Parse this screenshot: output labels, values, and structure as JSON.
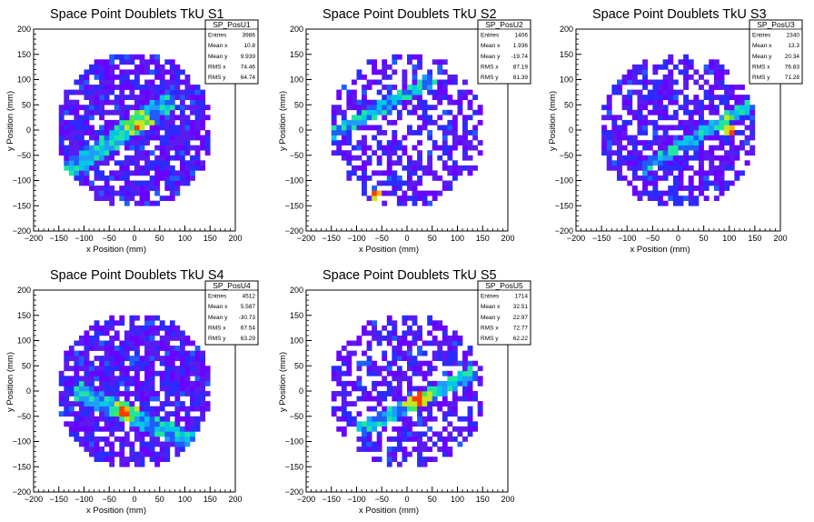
{
  "chart_data": [
    {
      "type": "heatmap",
      "title": "Space Point Doublets TkU S1",
      "xlabel": "x Position (mm)",
      "ylabel": "y Position (mm)",
      "xlim": [
        -200,
        200
      ],
      "ylim": [
        -200,
        200
      ],
      "xticks": [
        "−200",
        "−150",
        "−100",
        "−50",
        "0",
        "50",
        "100",
        "150",
        "200"
      ],
      "yticks": [
        "−200",
        "−150",
        "−100",
        "−50",
        "0",
        "50",
        "100",
        "150",
        "200"
      ],
      "stats": {
        "name": "SP_PosU1",
        "rows": [
          {
            "label": "Entries",
            "value": "3986"
          },
          {
            "label": "Mean x",
            "value": "10.8"
          },
          {
            "label": "Mean y",
            "value": "9.939"
          },
          {
            "label": "RMS x",
            "value": "74.46"
          },
          {
            "label": "RMS y",
            "value": "64.74"
          }
        ]
      },
      "pattern": {
        "fill": 0.82,
        "band_dir": [
          1,
          0.7
        ],
        "band_offset": [
          -30,
          -10
        ],
        "band_halfwidth": 18,
        "hotspot": [
          10,
          10
        ],
        "seed": 11
      }
    },
    {
      "type": "heatmap",
      "title": "Space Point Doublets TkU S2",
      "xlabel": "x Position (mm)",
      "ylabel": "y Position (mm)",
      "xlim": [
        -200,
        200
      ],
      "ylim": [
        -200,
        200
      ],
      "xticks": [
        "−200",
        "−150",
        "−100",
        "−50",
        "0",
        "50",
        "100",
        "150",
        "200"
      ],
      "yticks": [
        "−200",
        "−150",
        "−100",
        "−50",
        "0",
        "50",
        "100",
        "150",
        "200"
      ],
      "stats": {
        "name": "SP_PosU2",
        "rows": [
          {
            "label": "Entries",
            "value": "1406"
          },
          {
            "label": "Mean x",
            "value": "1.936"
          },
          {
            "label": "Mean y",
            "value": "-19.74"
          },
          {
            "label": "RMS x",
            "value": "87.19"
          },
          {
            "label": "RMS y",
            "value": "81.39"
          }
        ]
      },
      "pattern": {
        "fill": 0.55,
        "band_dir": [
          1,
          0.55
        ],
        "band_offset": [
          -60,
          40
        ],
        "band_halfwidth": 12,
        "hotspot": [
          -60,
          -130
        ],
        "seed": 23
      }
    },
    {
      "type": "heatmap",
      "title": "Space Point Doublets TkU S3",
      "xlabel": "x Position (mm)",
      "ylabel": "y Position (mm)",
      "xlim": [
        -200,
        200
      ],
      "ylim": [
        -200,
        200
      ],
      "xticks": [
        "−200",
        "−150",
        "−100",
        "−50",
        "0",
        "50",
        "100",
        "150",
        "200"
      ],
      "yticks": [
        "−200",
        "−150",
        "−100",
        "−50",
        "0",
        "50",
        "100",
        "150",
        "200"
      ],
      "stats": {
        "name": "SP_PosU3",
        "rows": [
          {
            "label": "Entries",
            "value": "2340"
          },
          {
            "label": "Mean x",
            "value": "13.3"
          },
          {
            "label": "Mean y",
            "value": "20.34"
          },
          {
            "label": "RMS x",
            "value": "76.83"
          },
          {
            "label": "RMS y",
            "value": "71.28"
          }
        ]
      },
      "pattern": {
        "fill": 0.68,
        "band_dir": [
          1,
          0.6
        ],
        "band_offset": [
          40,
          -10
        ],
        "band_halfwidth": 12,
        "hotspot": [
          100,
          0
        ],
        "seed": 37
      }
    },
    {
      "type": "heatmap",
      "title": "Space Point Doublets TkU S4",
      "xlabel": "x Position (mm)",
      "ylabel": "y Position (mm)",
      "xlim": [
        -200,
        200
      ],
      "ylim": [
        -200,
        200
      ],
      "xticks": [
        "−200",
        "−150",
        "−100",
        "−50",
        "0",
        "50",
        "100",
        "150",
        "200"
      ],
      "yticks": [
        "−200",
        "−150",
        "−100",
        "−50",
        "0",
        "50",
        "100",
        "150",
        "200"
      ],
      "stats": {
        "name": "SP_PosU4",
        "rows": [
          {
            "label": "Entries",
            "value": "4512"
          },
          {
            "label": "Mean x",
            "value": "5.587"
          },
          {
            "label": "Mean y",
            "value": "-30.73"
          },
          {
            "label": "RMS x",
            "value": "67.54"
          },
          {
            "label": "RMS y",
            "value": "63.29"
          }
        ]
      },
      "pattern": {
        "fill": 0.85,
        "band_dir": [
          1,
          -0.45
        ],
        "band_offset": [
          0,
          -50
        ],
        "band_halfwidth": 18,
        "hotspot": [
          -20,
          -40
        ],
        "seed": 41
      }
    },
    {
      "type": "heatmap",
      "title": "Space Point Doublets TkU S5",
      "xlabel": "x Position (mm)",
      "ylabel": "y Position (mm)",
      "xlim": [
        -200,
        200
      ],
      "ylim": [
        -200,
        200
      ],
      "xticks": [
        "−200",
        "−150",
        "−100",
        "−50",
        "0",
        "50",
        "100",
        "150",
        "200"
      ],
      "yticks": [
        "−200",
        "−150",
        "−100",
        "−50",
        "0",
        "50",
        "100",
        "150",
        "200"
      ],
      "stats": {
        "name": "SP_PosU5",
        "rows": [
          {
            "label": "Entries",
            "value": "1714"
          },
          {
            "label": "Mean x",
            "value": "32.51"
          },
          {
            "label": "Mean y",
            "value": "22.97"
          },
          {
            "label": "RMS x",
            "value": "72.77"
          },
          {
            "label": "RMS y",
            "value": "62.22"
          }
        ]
      },
      "pattern": {
        "fill": 0.58,
        "band_dir": [
          1,
          0.5
        ],
        "band_offset": [
          20,
          -20
        ],
        "band_halfwidth": 12,
        "hotspot": [
          20,
          -15
        ],
        "seed": 53
      }
    }
  ]
}
